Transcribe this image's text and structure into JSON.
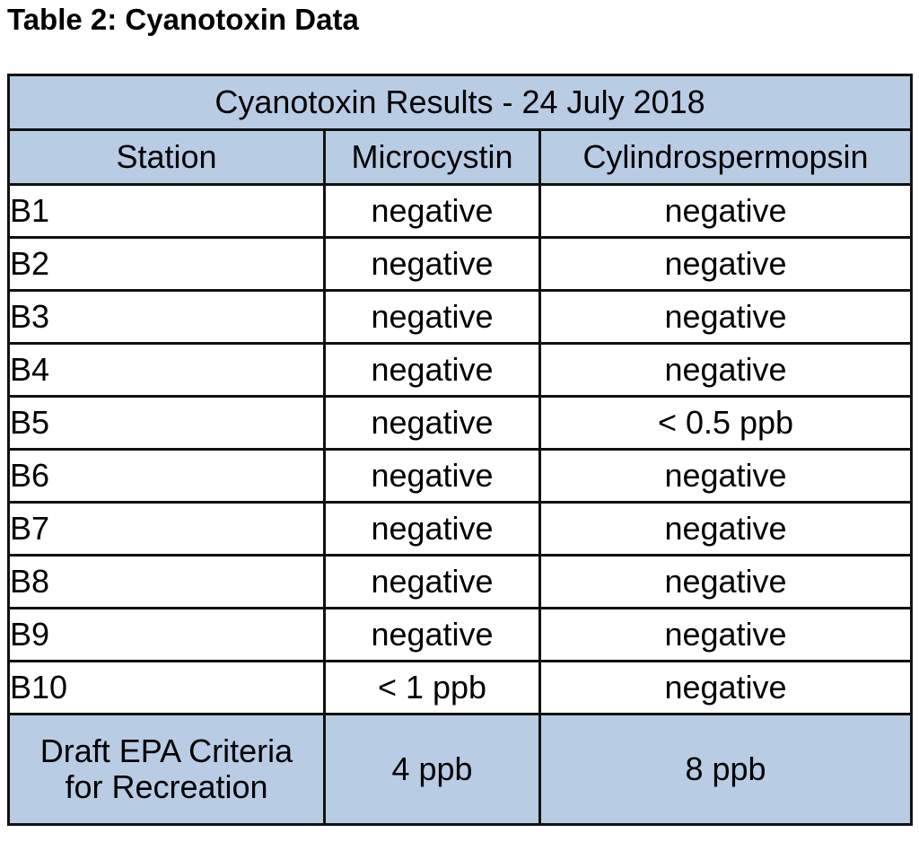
{
  "caption": "Table 2: Cyanotoxin Data",
  "table": {
    "title": "Cyanotoxin Results - 24 July 2018",
    "headers": [
      "Station",
      "Microcystin",
      "Cylindrospermopsin"
    ],
    "rows": [
      {
        "station": "B1",
        "microcystin": "negative",
        "cylindrospermopsin": "negative"
      },
      {
        "station": "B2",
        "microcystin": "negative",
        "cylindrospermopsin": "negative"
      },
      {
        "station": "B3",
        "microcystin": "negative",
        "cylindrospermopsin": "negative"
      },
      {
        "station": "B4",
        "microcystin": "negative",
        "cylindrospermopsin": "negative"
      },
      {
        "station": "B5",
        "microcystin": "negative",
        "cylindrospermopsin": "< 0.5 ppb"
      },
      {
        "station": "B6",
        "microcystin": "negative",
        "cylindrospermopsin": "negative"
      },
      {
        "station": "B7",
        "microcystin": "negative",
        "cylindrospermopsin": "negative"
      },
      {
        "station": "B8",
        "microcystin": "negative",
        "cylindrospermopsin": "negative"
      },
      {
        "station": "B9",
        "microcystin": "negative",
        "cylindrospermopsin": "negative"
      },
      {
        "station": "B10",
        "microcystin": "< 1 ppb",
        "cylindrospermopsin": "negative"
      }
    ],
    "criteria": {
      "label_line1": "Draft EPA Criteria",
      "label_line2": "for Recreation",
      "microcystin": "4 ppb",
      "cylindrospermopsin": "8 ppb"
    }
  },
  "colors": {
    "header_fill": "#b8cce4",
    "border": "#111111"
  }
}
